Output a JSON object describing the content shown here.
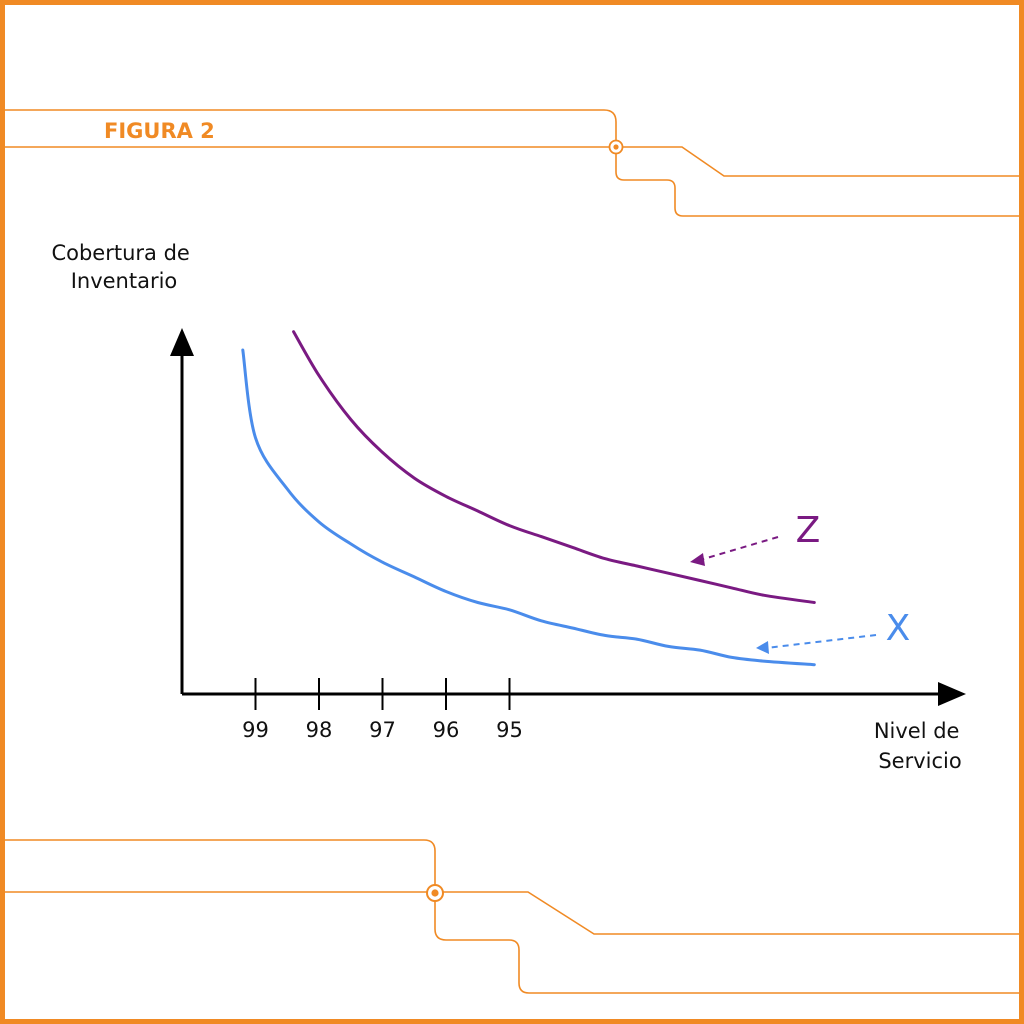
{
  "figure_label": "FIGURA 2",
  "colors": {
    "accent": "#F08A24",
    "series_z": "#7A1A82",
    "series_x": "#4A8CEB",
    "axis": "#000000"
  },
  "chart_data": {
    "type": "line",
    "title": "",
    "xlabel": [
      "Nivel de",
      "Servicio"
    ],
    "ylabel": [
      "Cobertura de",
      "Inventario"
    ],
    "x_ticks": [
      99,
      98,
      97,
      96,
      95
    ],
    "x_reversed": true,
    "grid": false,
    "series": [
      {
        "name": "Z",
        "x": [
          98.4,
          98.0,
          97.5,
          97.0,
          96.5,
          96.0,
          95.5,
          95.0,
          94.5,
          94.0,
          93.5,
          93.0,
          92.5,
          92.0,
          91.5,
          91.0,
          90.2
        ],
        "y": [
          0.99,
          0.87,
          0.75,
          0.66,
          0.59,
          0.54,
          0.5,
          0.46,
          0.43,
          0.4,
          0.37,
          0.35,
          0.33,
          0.31,
          0.29,
          0.27,
          0.25
        ]
      },
      {
        "name": "X",
        "x": [
          99.2,
          99.0,
          98.5,
          98.0,
          97.5,
          97.0,
          96.5,
          96.0,
          95.5,
          95.0,
          94.5,
          94.0,
          93.5,
          93.0,
          92.5,
          92.0,
          91.5,
          91.0,
          90.2
        ],
        "y": [
          0.94,
          0.7,
          0.56,
          0.47,
          0.41,
          0.36,
          0.32,
          0.28,
          0.25,
          0.23,
          0.2,
          0.18,
          0.16,
          0.15,
          0.13,
          0.12,
          0.1,
          0.09,
          0.08
        ]
      }
    ]
  }
}
